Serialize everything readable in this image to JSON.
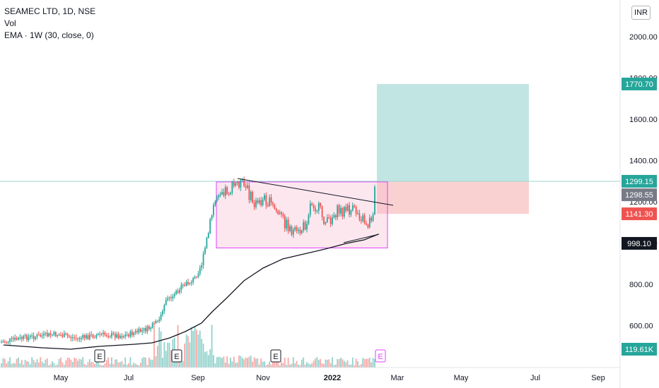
{
  "legend": {
    "symbol": "SEAMEC LTD, 1D, NSE",
    "volume": "Vol",
    "ema": "EMA · 1W (30, close, 0)"
  },
  "currency_button": "INR",
  "colors": {
    "up": "#26a69a",
    "down": "#ef5350",
    "ema": "#131722",
    "range_box": "#e040fb",
    "target_zone": "#b2dfdb",
    "stop_zone": "#f8c9c8"
  },
  "chart_data": {
    "type": "candlestick",
    "x_tick_labels": [
      "May",
      "Jul",
      "Sep",
      "Nov",
      "2022",
      "Mar",
      "May",
      "Jul",
      "Sep"
    ],
    "y_tick_labels": [
      "2000.00",
      "1800.00",
      "1600.00",
      "1400.00",
      "1200.00",
      "1000.00",
      "800.00",
      "600.00"
    ],
    "y_ticks": [
      2000,
      1800,
      1600,
      1400,
      1200,
      1000,
      800,
      600
    ],
    "ylim": [
      396,
      2178
    ],
    "price_labels": [
      {
        "text": "1770.70",
        "value": 1770.7,
        "color": "#26a69a"
      },
      {
        "text": "1299.15",
        "value": 1299.15,
        "color": "#26a69a"
      },
      {
        "text": "1298.55",
        "value": 1298.55,
        "color": "#787b86"
      },
      {
        "text": "1141.30",
        "value": 1141.3,
        "color": "#ef5350"
      },
      {
        "text": "998.10",
        "value": 998.1,
        "color": "#131722"
      },
      {
        "text": "119.61K",
        "value": null,
        "color": "#26a69a"
      }
    ],
    "earnings_markers": [
      "E",
      "E",
      "E",
      "E"
    ],
    "long_position": {
      "entry": 1299.15,
      "target": 1770.7,
      "stop": 1141.3
    },
    "range_box": {
      "top": 1296,
      "bottom": 976
    },
    "series": [
      {
        "name": "Vol"
      },
      {
        "name": "EMA · 1W (30, close, 0)"
      }
    ]
  }
}
